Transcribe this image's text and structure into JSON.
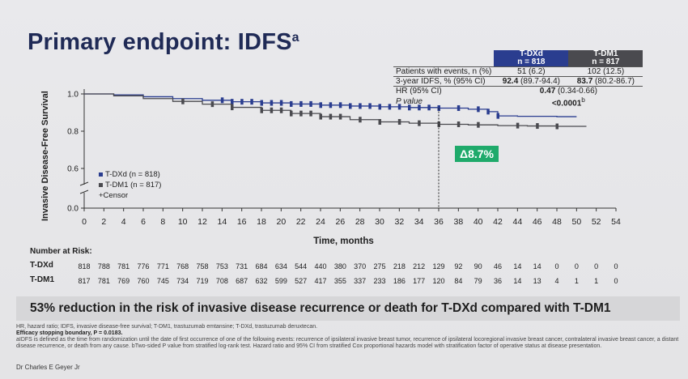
{
  "title": {
    "text": "Primary endpoint: IDFS",
    "superscript": "a"
  },
  "stats": {
    "col1_name": "T-DXd",
    "col1_n": "n = 818",
    "col2_name": "T-DM1",
    "col2_n": "n = 817",
    "rows": [
      {
        "label": "Patients with events, n (%)",
        "a": "51 (6.2)",
        "b": "102 (12.5)"
      },
      {
        "label": "3-year IDFS, % (95% CI)",
        "a_main": "92.4",
        "a_ci": "(89.7-94.4)",
        "b_main": "83.7",
        "b_ci": "(80.2-86.7)"
      },
      {
        "label": "HR (95% CI)",
        "main": "0.47",
        "ci": "(0.34-0.66)"
      },
      {
        "label": "P value",
        "value": "<0.0001",
        "sup": "b"
      }
    ]
  },
  "chart_data": {
    "type": "line",
    "title": "Primary endpoint: IDFS",
    "xlabel": "Time, months",
    "ylabel": "Invasive Disease-Free Survival",
    "xlim": [
      0,
      54
    ],
    "ylim": [
      0,
      1.0
    ],
    "x_ticks": [
      0,
      2,
      4,
      6,
      8,
      10,
      12,
      14,
      16,
      18,
      20,
      22,
      24,
      26,
      28,
      30,
      32,
      34,
      36,
      38,
      40,
      42,
      44,
      46,
      48,
      50,
      52,
      54
    ],
    "y_ticks": [
      {
        "value": 0.0,
        "label": "0.0"
      },
      {
        "value": 0.6,
        "label": "0.6"
      },
      {
        "value": 0.8,
        "label": "0.8"
      },
      {
        "value": 1.0,
        "label": "1.0"
      }
    ],
    "y_axis_break": true,
    "grid": false,
    "legend_placement": "bottom-left",
    "legend_censor": "+Censor",
    "series": [
      {
        "name": "T-DXd (n = 818)",
        "color": "#2a3d8f",
        "x": [
          0,
          3,
          6,
          9,
          12,
          15,
          18,
          21,
          24,
          27,
          30,
          33,
          36,
          39,
          41,
          42,
          44,
          48,
          50
        ],
        "y": [
          1.0,
          0.995,
          0.985,
          0.975,
          0.966,
          0.958,
          0.952,
          0.946,
          0.94,
          0.935,
          0.931,
          0.927,
          0.924,
          0.918,
          0.905,
          0.882,
          0.88,
          0.878,
          0.878
        ],
        "censor_x": [
          14,
          15,
          16,
          17,
          18,
          19,
          20,
          21,
          22,
          23,
          24,
          25,
          26,
          27,
          28,
          29,
          30,
          31,
          32,
          33,
          34,
          35,
          36,
          38,
          40,
          41,
          42
        ]
      },
      {
        "name": "T-DM1 (n = 817)",
        "color": "#4a4a4f",
        "x": [
          0,
          3,
          6,
          9,
          12,
          15,
          18,
          21,
          24,
          27,
          30,
          33,
          36,
          39,
          42,
          45,
          48,
          51
        ],
        "y": [
          1.0,
          0.99,
          0.975,
          0.96,
          0.945,
          0.928,
          0.912,
          0.895,
          0.878,
          0.862,
          0.85,
          0.843,
          0.837,
          0.834,
          0.83,
          0.828,
          0.826,
          0.826
        ],
        "censor_x": [
          10,
          13,
          15,
          18,
          19,
          20,
          21,
          22,
          23,
          24,
          25,
          26,
          28,
          30,
          32,
          34,
          36,
          38,
          40,
          44,
          46,
          48
        ]
      }
    ],
    "annotations": {
      "delta": "Δ8.7%",
      "delta_at_x": 36
    }
  },
  "number_at_risk": {
    "title": "Number at Risk:",
    "rows": [
      {
        "label": "T-DXd",
        "values": [
          "818",
          "788",
          "781",
          "776",
          "771",
          "768",
          "758",
          "753",
          "731",
          "684",
          "634",
          "544",
          "440",
          "380",
          "370",
          "275",
          "218",
          "212",
          "129",
          "92",
          "90",
          "46",
          "14",
          "14",
          "0",
          "0",
          "0",
          "0"
        ]
      },
      {
        "label": "T-DM1",
        "values": [
          "817",
          "781",
          "769",
          "760",
          "745",
          "734",
          "719",
          "708",
          "687",
          "632",
          "599",
          "527",
          "417",
          "355",
          "337",
          "233",
          "186",
          "177",
          "120",
          "84",
          "79",
          "36",
          "14",
          "13",
          "4",
          "1",
          "1",
          "0"
        ]
      }
    ]
  },
  "headline": "53% reduction in the risk of invasive disease recurrence or death for T-DXd compared with T-DM1",
  "footnotes": {
    "abbrev": "HR, hazard ratio; IDFS, invasive disease-free survival; T-DM1, trastuzumab emtansine; T-DXd, trastuzumab deruxtecan.",
    "efficacy": "Efficacy stopping boundary, P = 0.0183.",
    "definition": "aIDFS is defined as the time from randomization until the date of first occurrence of one of the following events: recurrence of ipsilateral invasive breast tumor, recurrence of ipsilateral locoregional invasive breast cancer, contralateral invasive breast cancer, a distant disease recurrence, or death from any cause. bTwo-sided P value from stratified log-rank test. Hazard ratio and 95% CI from stratified Cox proportional hazards model with stratification factor of operative status at disease presentation."
  },
  "presenter": "Dr Charles E Geyer Jr"
}
